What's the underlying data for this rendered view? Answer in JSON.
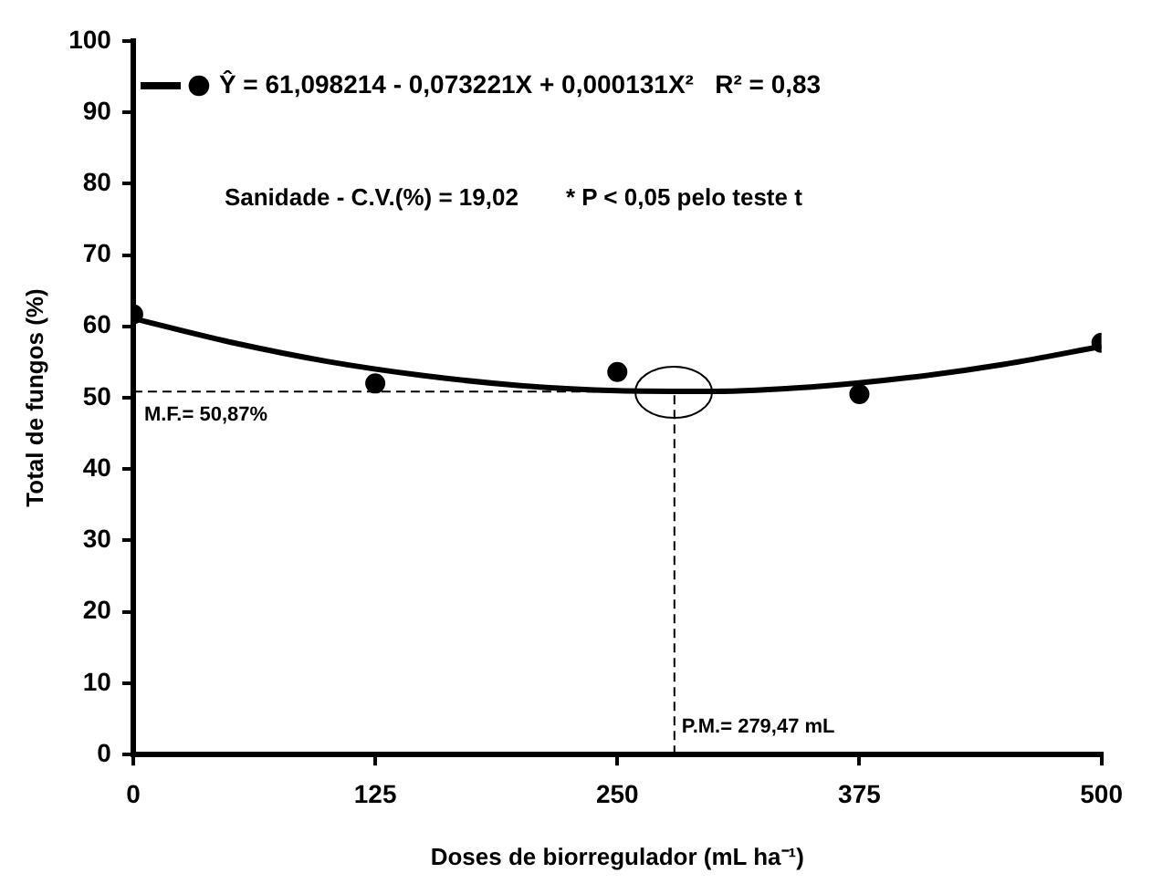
{
  "chart_data": {
    "type": "scatter",
    "xlabel": "Doses de biorregulador (mL ha⁻¹)",
    "ylabel": "Total de fungos (%)",
    "xlim": [
      0,
      500
    ],
    "xticks": [
      0,
      125,
      250,
      375,
      500
    ],
    "ylim": [
      0,
      100
    ],
    "yticks": [
      0,
      10,
      20,
      30,
      40,
      50,
      60,
      70,
      80,
      90,
      100
    ],
    "grid": false,
    "legend": "top",
    "marker": "circle",
    "series": [
      {
        "type": "line",
        "color": "#000000",
        "line_style": "solid",
        "marker": "none",
        "x": [
          0,
          50,
          100,
          150,
          200,
          250,
          300,
          350,
          400,
          450,
          500
        ],
        "values": [
          61.1,
          57.8,
          55.1,
          53.1,
          51.7,
          51.0,
          50.9,
          51.5,
          52.8,
          54.7,
          57.2
        ]
      },
      {
        "type": "scatter",
        "name": "Ŷ = 61,098214 - 0,073221X + 0,000131X²   R² = 0,83",
        "color": "#000000",
        "x": [
          0,
          125,
          250,
          375,
          500
        ],
        "values": [
          61.7,
          52.0,
          53.6,
          50.5,
          57.7
        ]
      }
    ],
    "ref_lines": [
      {
        "axis": "y",
        "value": 50.87,
        "label": "M.F.= 50,87%",
        "line_style": "dashed",
        "color": "#000000"
      },
      {
        "axis": "x",
        "value": 279.47,
        "label": "P.M.= 279,47 mL",
        "line_style": "dashed",
        "color": "#000000"
      }
    ],
    "annotations": [
      "Sanidade - C.V.(%) = 19,02",
      "* P < 0,05 pelo teste t"
    ]
  }
}
